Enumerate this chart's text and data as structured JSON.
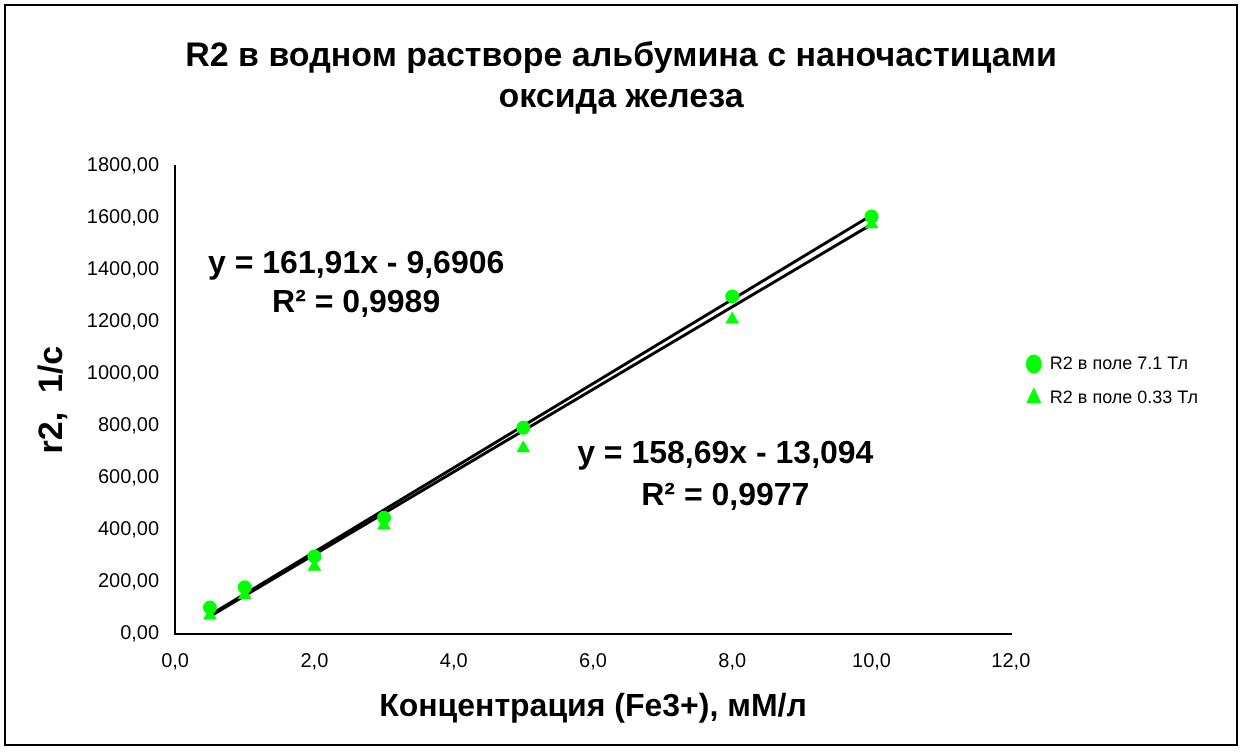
{
  "chart_data": {
    "type": "scatter",
    "title": "R2 в водном растворе альбумина с наночастицами оксида железа",
    "xlabel": "Концентрация (Fe3+), мМ/л",
    "ylabel": "r2,  1/c",
    "series": [
      {
        "name": "R2 в поле 7.1 Тл",
        "marker": "circle",
        "color": "#00ff00",
        "x": [
          0.5,
          1,
          2,
          3,
          5,
          8,
          10
        ],
        "values": [
          100,
          178,
          297,
          446,
          792,
          1297,
          1604
        ]
      },
      {
        "name": "R2 в поле 0.33 Тл",
        "marker": "triangle",
        "color": "#00ff00",
        "x": [
          0.5,
          1,
          2,
          3,
          5,
          8,
          10
        ],
        "values": [
          70,
          148,
          257,
          416,
          713,
          1208,
          1574
        ]
      },
      {
        "type": "line",
        "marker": "none",
        "color": "#000000",
        "x": [
          0.5,
          10
        ],
        "values": [
          71,
          1609
        ]
      },
      {
        "type": "line",
        "marker": "none",
        "color": "#000000",
        "x": [
          0.5,
          10
        ],
        "values": [
          66,
          1574
        ]
      }
    ],
    "xlim": [
      0,
      12
    ],
    "xticks": [
      {
        "value": 0,
        "label": "0,0"
      },
      {
        "value": 2,
        "label": "2,0"
      },
      {
        "value": 4,
        "label": "4,0"
      },
      {
        "value": 6,
        "label": "6,0"
      },
      {
        "value": 8,
        "label": "8,0"
      },
      {
        "value": 10,
        "label": "10,0"
      },
      {
        "value": 12,
        "label": "12,0"
      }
    ],
    "ylim": [
      0,
      1800
    ],
    "yticks": [
      {
        "value": 0,
        "label": "0,00"
      },
      {
        "value": 200,
        "label": "200,00"
      },
      {
        "value": 400,
        "label": "400,00"
      },
      {
        "value": 600,
        "label": "600,00"
      },
      {
        "value": 800,
        "label": "800,00"
      },
      {
        "value": 1000,
        "label": "1000,00"
      },
      {
        "value": 1200,
        "label": "1200,00"
      },
      {
        "value": 1400,
        "label": "1400,00"
      },
      {
        "value": 1600,
        "label": "1600,00"
      },
      {
        "value": 1800,
        "label": "1800,00"
      }
    ],
    "annotations": [
      "y = 161,91x - 9,6906",
      "R² = 0,9989",
      "y = 158,69x - 13,094",
      "R² = 0,9977"
    ],
    "grid": false,
    "legend": "right"
  }
}
